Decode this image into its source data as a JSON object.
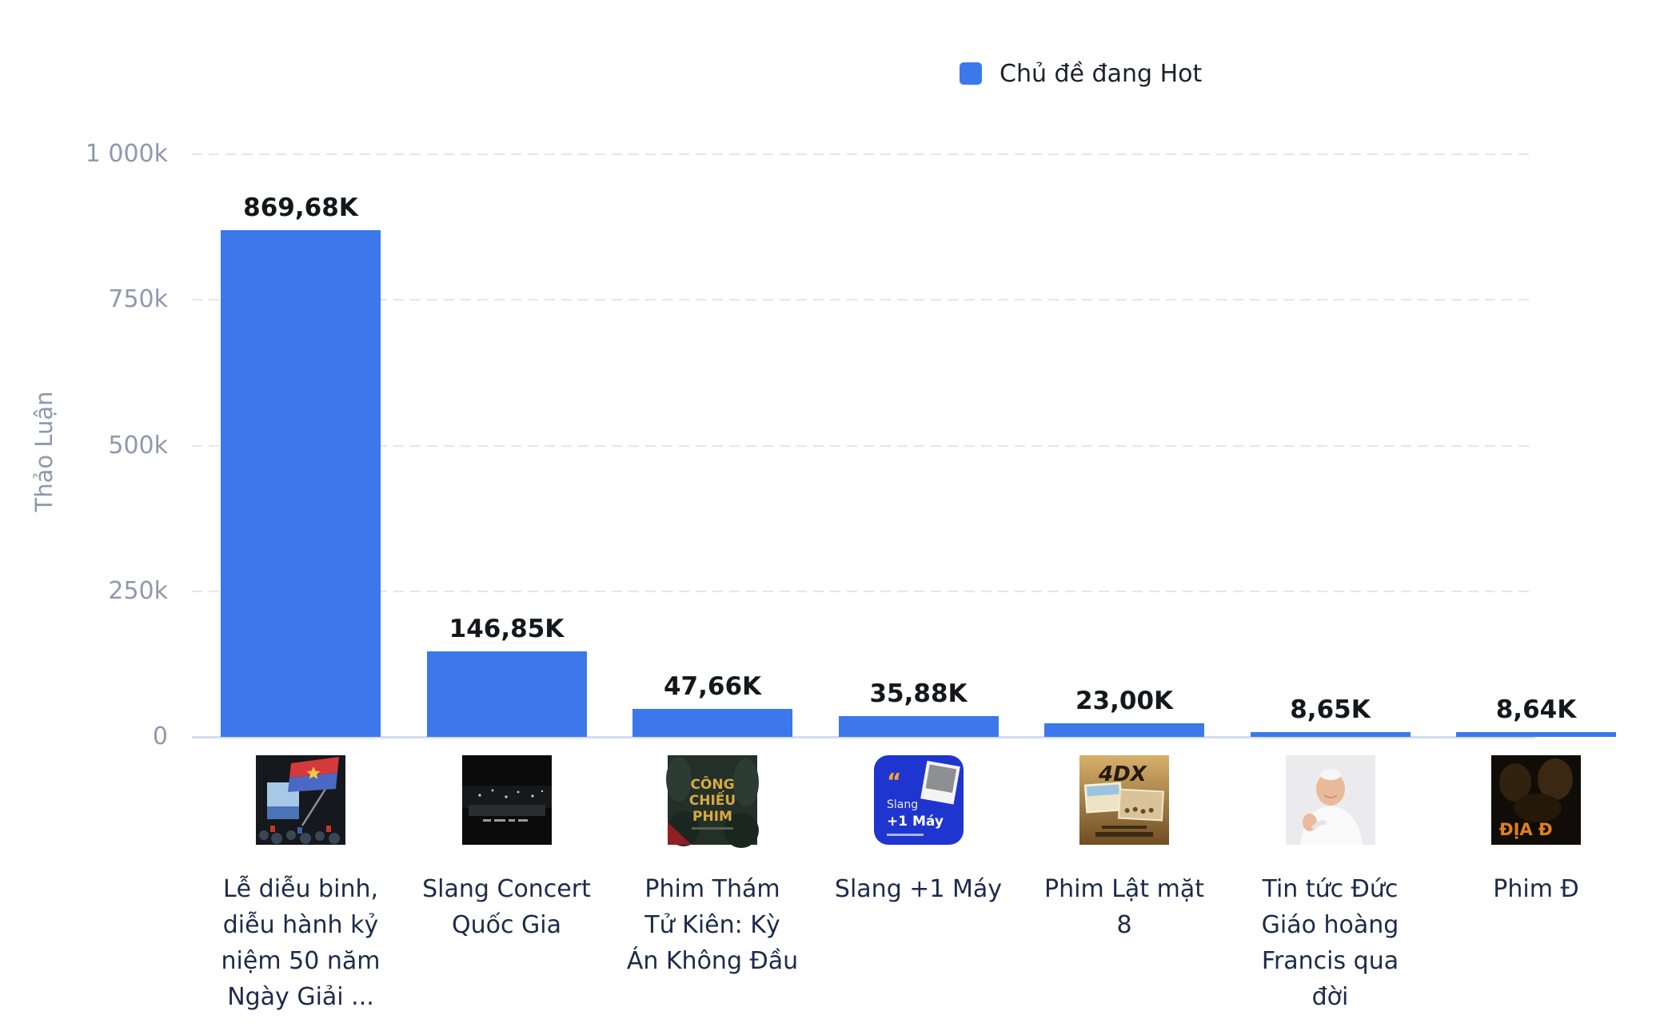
{
  "legend": {
    "label": "Chủ đề đang Hot",
    "swatch_color": "#3C78EC"
  },
  "colors": {
    "bar": "#3C78EC",
    "value_label": "#14171C",
    "tick_label": "#8E99AD",
    "category_label": "#1C2B4A",
    "gridline": "#E3E6F2",
    "baseline": "#D2DBF0",
    "background": "#FFFFFF"
  },
  "chart_data": {
    "type": "bar",
    "title": "",
    "legend": [
      "Chủ đề đang Hot"
    ],
    "legend_position": "top-right",
    "ylabel": "Thảo Luận",
    "xlabel": "",
    "y_unit": "k (thousands of discussions)",
    "ylim_k": [
      0,
      1000
    ],
    "grid": "horizontal dashed",
    "y_ticks": [
      {
        "value_k": 1000,
        "label": "1 000k"
      },
      {
        "value_k": 750,
        "label": "750k"
      },
      {
        "value_k": 500,
        "label": "500k"
      },
      {
        "value_k": 250,
        "label": "250k"
      },
      {
        "value_k": 0,
        "label": "0"
      }
    ],
    "items": [
      {
        "category": "Lễ diễu binh, diễu hành kỷ niệm 50 năm Ngày Giải ...",
        "category_display": "Lễ diễu binh,\ndiễu hành kỷ\nniệm 50 năm\nNgày Giải ...",
        "value_k": 869.68,
        "value_label": "869,68K",
        "thumb": {
          "kind": "parade",
          "desc": "crowd waving red flag with yellow star"
        }
      },
      {
        "category": "Slang Concert Quốc Gia",
        "category_display": "Slang Concert\nQuốc Gia",
        "value_k": 146.85,
        "value_label": "146,85K",
        "thumb": {
          "kind": "concert",
          "desc": "dark concert stage photo"
        }
      },
      {
        "category": "Phim Thám Tử Kiên: Kỳ Án Không Đầu",
        "category_display": "Phim Thám\nTử Kiên: Kỳ\nÁn Không Đầu",
        "value_k": 47.66,
        "value_label": "47,66K",
        "thumb": {
          "kind": "poster_cong_chieu",
          "text": "CÔNG CHIẾU PHIM",
          "desc": "movie premiere poster"
        }
      },
      {
        "category": "Slang +1 Máy",
        "category_display": "Slang +1 Máy",
        "value_k": 35.88,
        "value_label": "35,88K",
        "thumb": {
          "kind": "slang_blue",
          "text": "Slang +1 Máy",
          "desc": "blue quote card with polaroid"
        }
      },
      {
        "category": "Phim Lật mặt 8",
        "category_display": "Phim Lật mặt\n8",
        "value_k": 23.0,
        "value_label": "23,00K",
        "thumb": {
          "kind": "poster_4dx",
          "text": "4DX",
          "desc": "sandy desert movie poster"
        }
      },
      {
        "category": "Tin tức Đức Giáo hoàng Francis qua đời",
        "category_display": "Tin tức Đức\nGiáo hoàng\nFrancis qua\nđời",
        "value_k": 8.65,
        "value_label": "8,65K",
        "thumb": {
          "kind": "pope",
          "desc": "Pope Francis waving"
        }
      },
      {
        "category": "Phim Đ",
        "category_display": "Phim Đ",
        "value_k": 8.64,
        "value_label": "8,64K",
        "clipped_at_right_edge": true,
        "thumb": {
          "kind": "dia_dao",
          "text": "ĐỊA Đ",
          "desc": "dark movie poster with orange title"
        }
      }
    ]
  }
}
